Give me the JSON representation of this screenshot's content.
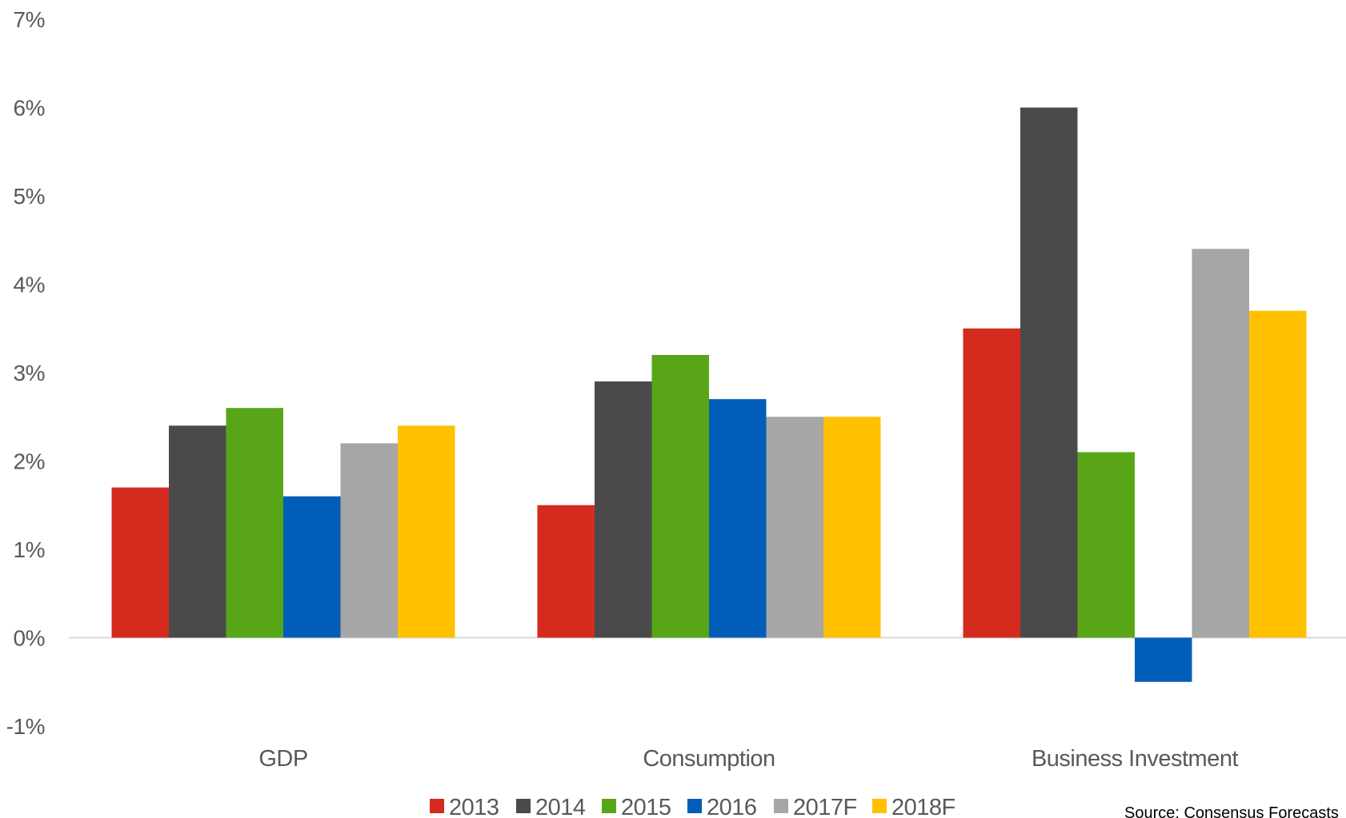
{
  "chart_data": {
    "type": "bar",
    "categories": [
      "GDP",
      "Consumption",
      "Business Investment"
    ],
    "series": [
      {
        "name": "2013",
        "color": "#d52b1e",
        "values": [
          1.7,
          1.5,
          3.5
        ]
      },
      {
        "name": "2014",
        "color": "#4a4a4a",
        "values": [
          2.4,
          2.9,
          6.0
        ]
      },
      {
        "name": "2015",
        "color": "#58a618",
        "values": [
          2.6,
          3.2,
          2.1
        ]
      },
      {
        "name": "2016",
        "color": "#005eb8",
        "values": [
          1.6,
          2.7,
          -0.5
        ]
      },
      {
        "name": "2017F",
        "color": "#a6a6a6",
        "values": [
          2.2,
          2.5,
          4.4
        ]
      },
      {
        "name": "2018F",
        "color": "#ffc000",
        "values": [
          2.4,
          2.5,
          3.7
        ]
      }
    ],
    "ylim": [
      -1,
      7
    ],
    "yticks": [
      7,
      6,
      5,
      4,
      3,
      2,
      1,
      0,
      -1
    ],
    "ytick_labels": [
      "7%",
      "6%",
      "5%",
      "4%",
      "3%",
      "2%",
      "1%",
      "0%",
      "-1%"
    ],
    "grid": false,
    "legend_position": "bottom",
    "source": "Source: Consensus Forecasts"
  }
}
